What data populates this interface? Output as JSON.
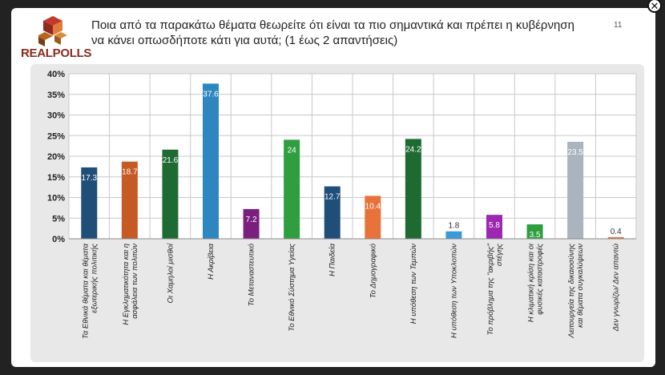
{
  "logo": {
    "text": "REALPOLLS"
  },
  "title": "Ποια από τα παρακάτω θέματα θεωρείτε ότι είναι τα πιο σημαντικά και πρέπει η κυβέρνηση να κάνει οπωσδήποτε κάτι για αυτά; (1 έως 2 απαντήσεις)",
  "page_number": "11",
  "close_icon": "✕",
  "chart_data": {
    "type": "bar",
    "ylim": [
      0,
      40
    ],
    "yticks": [
      "0%",
      "5%",
      "10%",
      "15%",
      "20%",
      "25%",
      "30%",
      "35%",
      "40%"
    ],
    "categories": [
      [
        "Τα Εθνικά θέματα και θέματα",
        "εξωτερικής πολιτικής"
      ],
      [
        "Η Εγκληματικότητα και η",
        "ασφάλεια των πολιτών"
      ],
      [
        "Οι Χαμηλοί μισθοί"
      ],
      [
        "Η Ακρίβεια"
      ],
      [
        "Το Μεταναστευτικό"
      ],
      [
        "Το Εθνικό Σύστημα Υγείας"
      ],
      [
        "Η Παιδεία"
      ],
      [
        "Το Δημογραφικό"
      ],
      [
        "Η υπόθεση των Τεμπών"
      ],
      [
        "Η υπόθεση των Υποκλοπών"
      ],
      [
        "Το πρόβλημα της \"ακριβής\"",
        "στέγης"
      ],
      [
        "Η κλιματική κρίση και οι",
        "φυσικές καταστροφές"
      ],
      [
        "Λειτουργεία της δικαιοσύνης",
        "και θέματα συγκαλύψεων"
      ],
      [
        "Δεν γνωρίζω/ Δεν απαντώ"
      ]
    ],
    "values": [
      17.3,
      18.7,
      21.6,
      37.6,
      7.2,
      24,
      12.7,
      10.4,
      24.2,
      1.8,
      5.8,
      3.5,
      23.5,
      0.4
    ],
    "data_labels": [
      "17.3",
      "18.7",
      "21.6",
      "37.6",
      "7.2",
      "24",
      "12.7",
      "10.4",
      "24.2",
      "1.8",
      "5.8",
      "3.5",
      "23.5",
      "0.4"
    ],
    "colors": [
      "#1f4e79",
      "#c55a24",
      "#1e6b32",
      "#2e86c1",
      "#7b1f7f",
      "#2e9e3e",
      "#1f4e79",
      "#e8733a",
      "#1e6b32",
      "#3a9ad9",
      "#9c27b0",
      "#2e9e3e",
      "#a9b4bf",
      "#e8733a"
    ],
    "grid": true
  }
}
